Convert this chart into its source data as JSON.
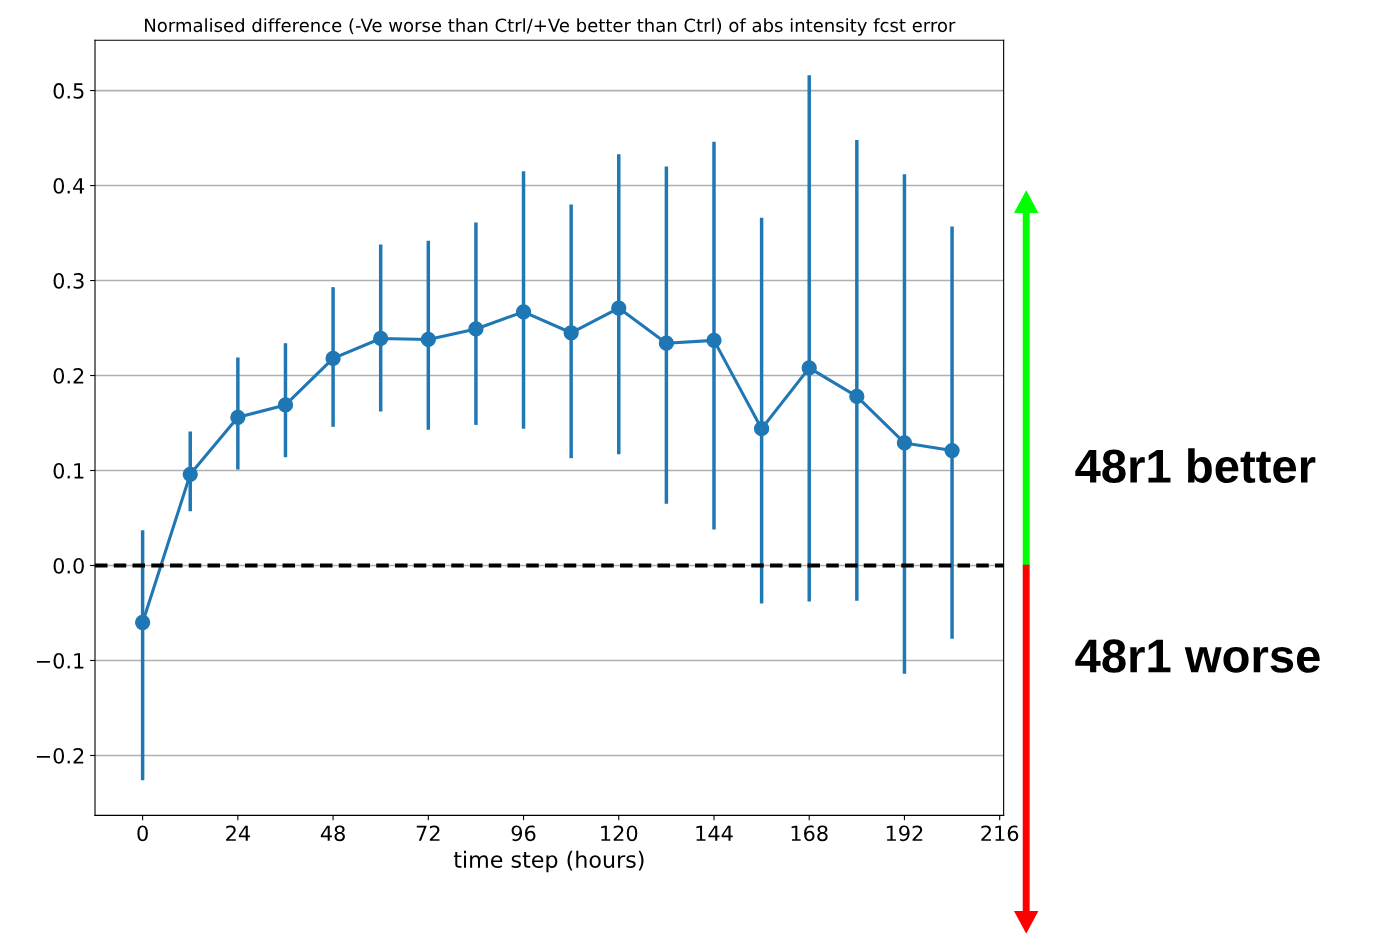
{
  "chart_data": {
    "type": "line",
    "title": "Normalised difference (-Ve worse than Ctrl/+Ve better than Ctrl) of abs intensity fcst error",
    "xlabel": "time step (hours)",
    "x": [
      0,
      12,
      24,
      36,
      48,
      60,
      72,
      84,
      96,
      108,
      120,
      132,
      144,
      156,
      168,
      180,
      192,
      204
    ],
    "series": [
      {
        "color": "#1f77b4",
        "values": [
          -0.06,
          0.096,
          0.156,
          0.169,
          0.218,
          0.239,
          0.238,
          0.249,
          0.267,
          0.245,
          0.271,
          0.234,
          0.237,
          0.144,
          0.208,
          0.178,
          0.129,
          0.121
        ],
        "errors": [
          [
            -0.226,
            0.037
          ],
          [
            0.057,
            0.141
          ],
          [
            0.101,
            0.219
          ],
          [
            0.114,
            0.234
          ],
          [
            0.146,
            0.293
          ],
          [
            0.162,
            0.338
          ],
          [
            0.143,
            0.342
          ],
          [
            0.148,
            0.361
          ],
          [
            0.144,
            0.415
          ],
          [
            0.113,
            0.38
          ],
          [
            0.117,
            0.433
          ],
          [
            0.065,
            0.42
          ],
          [
            0.038,
            0.446
          ],
          [
            -0.04,
            0.366
          ],
          [
            -0.038,
            0.516
          ],
          [
            -0.037,
            0.448
          ],
          [
            -0.114,
            0.412
          ],
          [
            -0.077,
            0.357
          ]
        ]
      }
    ],
    "marker": "circle",
    "xlim": [
      -12,
      217
    ],
    "xticks": [
      0,
      24,
      48,
      72,
      96,
      120,
      144,
      168,
      192,
      216
    ],
    "ylim": [
      -0.263,
      0.553
    ],
    "yticks": [
      {
        "value": -0.2,
        "label": "−0.2"
      },
      {
        "value": -0.1,
        "label": "−0.1"
      },
      {
        "value": 0.0,
        "label": "0.0"
      },
      {
        "value": 0.1,
        "label": "0.1"
      },
      {
        "value": 0.2,
        "label": "0.2"
      },
      {
        "value": 0.3,
        "label": "0.3"
      },
      {
        "value": 0.4,
        "label": "0.4"
      },
      {
        "value": 0.5,
        "label": "0.5"
      }
    ],
    "grid": "y",
    "ref_lines": [
      {
        "axis": "y",
        "value": 0,
        "color": "#000000",
        "line_style": "dashed"
      }
    ],
    "annotations": [
      "48r1 better",
      "48r1 worse"
    ]
  }
}
